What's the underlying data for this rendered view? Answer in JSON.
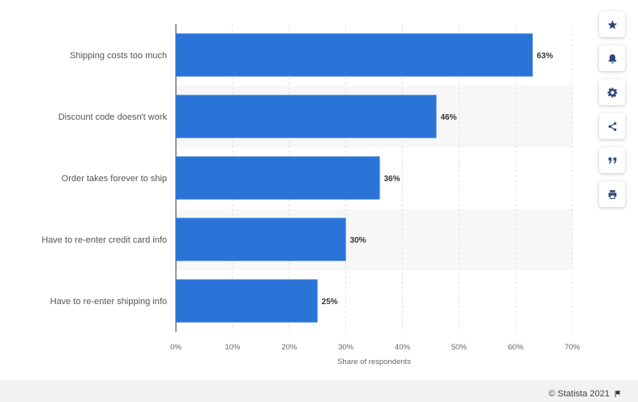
{
  "chart_data": {
    "type": "bar",
    "orientation": "horizontal",
    "categories": [
      "Shipping costs too much",
      "Discount code doesn't work",
      "Order takes forever to ship",
      "Have to re-enter credit card info",
      "Have to re-enter shipping info"
    ],
    "values": [
      63,
      46,
      36,
      30,
      25
    ],
    "value_labels": [
      "63%",
      "46%",
      "36%",
      "30%",
      "25%"
    ],
    "xlabel": "Share of respondents",
    "xlim": [
      0,
      70
    ],
    "x_ticks": [
      0,
      10,
      20,
      30,
      40,
      50,
      60,
      70
    ],
    "x_tick_labels": [
      "0%",
      "10%",
      "20%",
      "30%",
      "40%",
      "50%",
      "60%",
      "70%"
    ],
    "grid": true,
    "bar_color": "#2a74d8"
  },
  "toolbar": {
    "items": [
      {
        "icon": "star-icon"
      },
      {
        "icon": "bell-icon"
      },
      {
        "icon": "gear-icon"
      },
      {
        "icon": "share-icon"
      },
      {
        "icon": "quote-icon"
      },
      {
        "icon": "print-icon"
      }
    ]
  },
  "footer": {
    "credit": "© Statista 2021",
    "flag_icon": "flag-icon"
  }
}
